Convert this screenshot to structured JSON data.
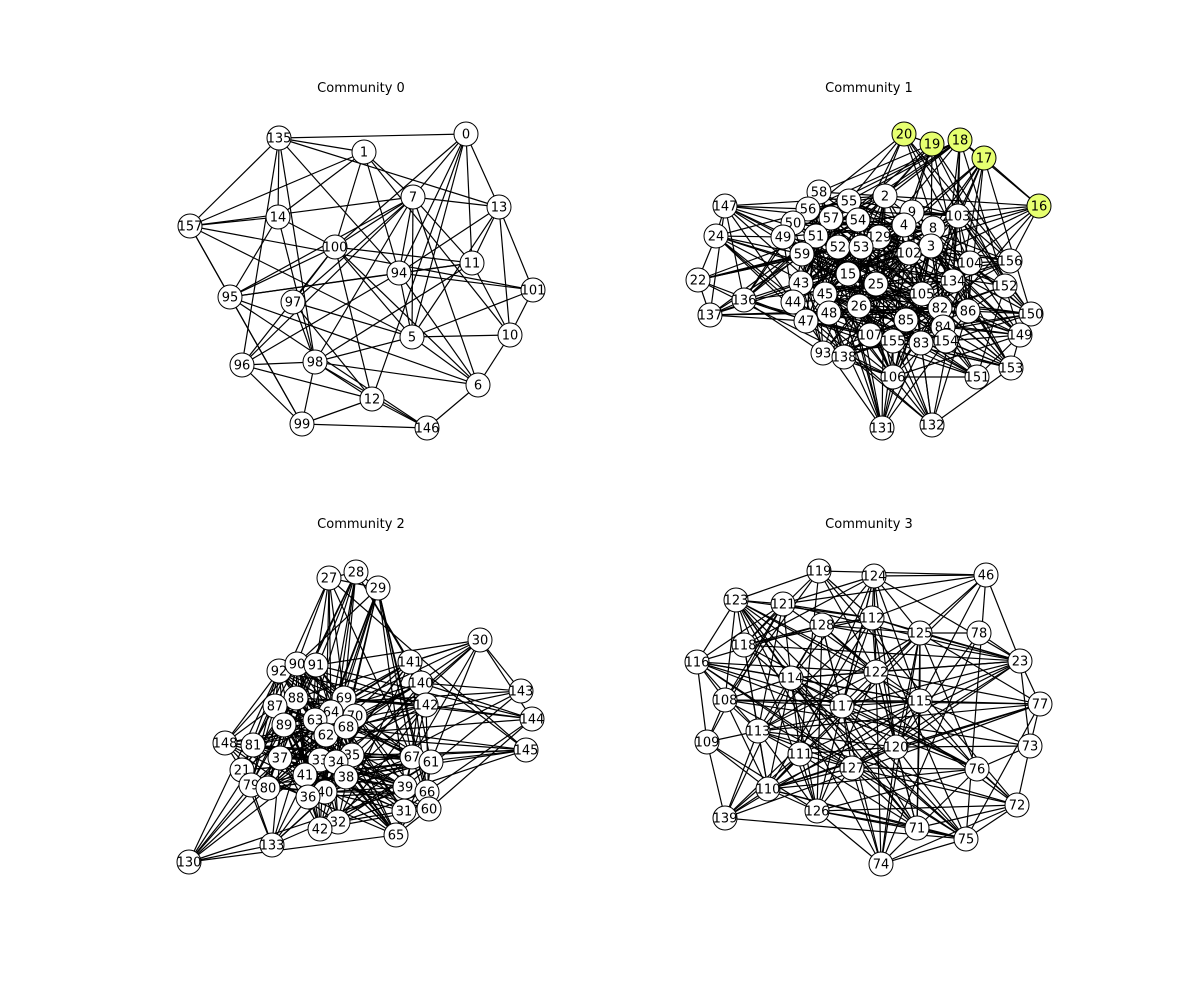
{
  "colors": {
    "node_fill": "#ffffff",
    "highlight_fill": "#e6ff70",
    "edge": "#000000",
    "background": "#ffffff"
  },
  "panels": [
    {
      "title": "Community 0",
      "nodes": [
        {
          "id": "0"
        },
        {
          "id": "1"
        },
        {
          "id": "135"
        },
        {
          "id": "157"
        },
        {
          "id": "14"
        },
        {
          "id": "7"
        },
        {
          "id": "13"
        },
        {
          "id": "100"
        },
        {
          "id": "11"
        },
        {
          "id": "94"
        },
        {
          "id": "101"
        },
        {
          "id": "95"
        },
        {
          "id": "97"
        },
        {
          "id": "5"
        },
        {
          "id": "10"
        },
        {
          "id": "96"
        },
        {
          "id": "98"
        },
        {
          "id": "6"
        },
        {
          "id": "12"
        },
        {
          "id": "99"
        },
        {
          "id": "146"
        }
      ],
      "highlight": [],
      "density": "dense"
    },
    {
      "title": "Community 1",
      "nodes": [
        {
          "id": "20"
        },
        {
          "id": "19"
        },
        {
          "id": "18"
        },
        {
          "id": "17"
        },
        {
          "id": "16"
        },
        {
          "id": "58"
        },
        {
          "id": "2"
        },
        {
          "id": "55"
        },
        {
          "id": "147"
        },
        {
          "id": "56"
        },
        {
          "id": "9"
        },
        {
          "id": "57"
        },
        {
          "id": "54"
        },
        {
          "id": "4"
        },
        {
          "id": "8"
        },
        {
          "id": "103"
        },
        {
          "id": "50"
        },
        {
          "id": "24"
        },
        {
          "id": "49"
        },
        {
          "id": "51"
        },
        {
          "id": "129"
        },
        {
          "id": "3"
        },
        {
          "id": "52"
        },
        {
          "id": "53"
        },
        {
          "id": "102"
        },
        {
          "id": "59"
        },
        {
          "id": "104"
        },
        {
          "id": "156"
        },
        {
          "id": "22"
        },
        {
          "id": "15"
        },
        {
          "id": "134"
        },
        {
          "id": "43"
        },
        {
          "id": "25"
        },
        {
          "id": "152"
        },
        {
          "id": "45"
        },
        {
          "id": "136"
        },
        {
          "id": "44"
        },
        {
          "id": "105"
        },
        {
          "id": "26"
        },
        {
          "id": "137"
        },
        {
          "id": "82"
        },
        {
          "id": "86"
        },
        {
          "id": "150"
        },
        {
          "id": "48"
        },
        {
          "id": "47"
        },
        {
          "id": "85"
        },
        {
          "id": "84"
        },
        {
          "id": "107"
        },
        {
          "id": "149"
        },
        {
          "id": "155"
        },
        {
          "id": "154"
        },
        {
          "id": "83"
        },
        {
          "id": "93"
        },
        {
          "id": "138"
        },
        {
          "id": "153"
        },
        {
          "id": "106"
        },
        {
          "id": "151"
        },
        {
          "id": "131"
        },
        {
          "id": "132"
        }
      ],
      "highlight": [
        "20",
        "19",
        "18",
        "17",
        "16"
      ],
      "density": "very-dense"
    },
    {
      "title": "Community 2",
      "nodes": [
        {
          "id": "27"
        },
        {
          "id": "28"
        },
        {
          "id": "29"
        },
        {
          "id": "30"
        },
        {
          "id": "92"
        },
        {
          "id": "90"
        },
        {
          "id": "91"
        },
        {
          "id": "141"
        },
        {
          "id": "140"
        },
        {
          "id": "143"
        },
        {
          "id": "88"
        },
        {
          "id": "69"
        },
        {
          "id": "87"
        },
        {
          "id": "142"
        },
        {
          "id": "64"
        },
        {
          "id": "70"
        },
        {
          "id": "89"
        },
        {
          "id": "63"
        },
        {
          "id": "144"
        },
        {
          "id": "62"
        },
        {
          "id": "68"
        },
        {
          "id": "148"
        },
        {
          "id": "81"
        },
        {
          "id": "145"
        },
        {
          "id": "35"
        },
        {
          "id": "37"
        },
        {
          "id": "33"
        },
        {
          "id": "34"
        },
        {
          "id": "67"
        },
        {
          "id": "61"
        },
        {
          "id": "21"
        },
        {
          "id": "41"
        },
        {
          "id": "38"
        },
        {
          "id": "79"
        },
        {
          "id": "80"
        },
        {
          "id": "40"
        },
        {
          "id": "39"
        },
        {
          "id": "66"
        },
        {
          "id": "36"
        },
        {
          "id": "31"
        },
        {
          "id": "60"
        },
        {
          "id": "32"
        },
        {
          "id": "42"
        },
        {
          "id": "65"
        },
        {
          "id": "133"
        },
        {
          "id": "130"
        }
      ],
      "highlight": [],
      "density": "dense-core"
    },
    {
      "title": "Community 3",
      "nodes": [
        {
          "id": "119"
        },
        {
          "id": "124"
        },
        {
          "id": "46"
        },
        {
          "id": "123"
        },
        {
          "id": "121"
        },
        {
          "id": "112"
        },
        {
          "id": "128"
        },
        {
          "id": "125"
        },
        {
          "id": "78"
        },
        {
          "id": "118"
        },
        {
          "id": "116"
        },
        {
          "id": "23"
        },
        {
          "id": "114"
        },
        {
          "id": "122"
        },
        {
          "id": "108"
        },
        {
          "id": "115"
        },
        {
          "id": "117"
        },
        {
          "id": "77"
        },
        {
          "id": "113"
        },
        {
          "id": "109"
        },
        {
          "id": "111"
        },
        {
          "id": "120"
        },
        {
          "id": "73"
        },
        {
          "id": "127"
        },
        {
          "id": "76"
        },
        {
          "id": "110"
        },
        {
          "id": "126"
        },
        {
          "id": "72"
        },
        {
          "id": "139"
        },
        {
          "id": "71"
        },
        {
          "id": "75"
        },
        {
          "id": "74"
        }
      ],
      "highlight": [],
      "density": "dense"
    }
  ]
}
